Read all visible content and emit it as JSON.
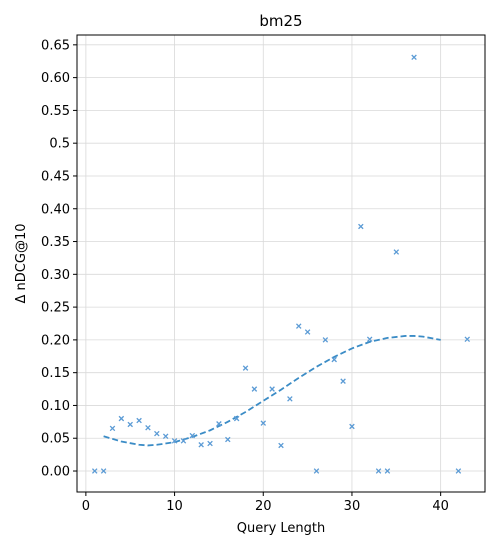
{
  "chart_data": {
    "type": "scatter",
    "title": "bm25",
    "xlabel": "Query Length",
    "ylabel": "Δ nDCG@10",
    "xlim": [
      -1,
      45
    ],
    "ylim": [
      -0.032,
      0.665
    ],
    "grid": true,
    "x_ticks": [
      0,
      10,
      20,
      30,
      40
    ],
    "x_tick_labels": [
      "0",
      "10",
      "20",
      "30",
      "40"
    ],
    "y_ticks": [
      0,
      0.05,
      0.1,
      0.15,
      0.2,
      0.25,
      0.3,
      0.35,
      0.4,
      0.45,
      0.5,
      0.55,
      0.6,
      0.65
    ],
    "y_tick_labels": [
      "0.00",
      "0.05",
      "0.10",
      "0.15",
      "0.20",
      "0.25",
      "0.30",
      "0.35",
      "0.40",
      "0.45",
      "0.5",
      "0.55",
      "0.60",
      "0.65"
    ],
    "series": [
      {
        "marker": "x",
        "color": "#5b9bd5",
        "x": [
          1,
          2,
          3,
          4,
          5,
          6,
          7,
          8,
          9,
          10,
          11,
          12,
          13,
          14,
          15,
          16,
          17,
          18,
          19,
          20,
          21,
          22,
          23,
          24,
          25,
          26,
          27,
          28,
          29,
          30,
          31,
          32,
          33,
          34,
          35,
          37,
          42,
          43
        ],
        "y": [
          0.0,
          0.0,
          0.065,
          0.08,
          0.071,
          0.077,
          0.066,
          0.057,
          0.053,
          0.046,
          0.046,
          0.054,
          0.04,
          0.042,
          0.072,
          0.048,
          0.08,
          0.157,
          0.125,
          0.073,
          0.125,
          0.039,
          0.11,
          0.221,
          0.212,
          0.0,
          0.2,
          0.17,
          0.137,
          0.068,
          0.373,
          0.201,
          0.0,
          0.0,
          0.334,
          0.631,
          0.0,
          0.201
        ]
      },
      {
        "type": "line",
        "style": "dashed",
        "color": "#3b8cc6",
        "x": [
          2,
          4,
          6,
          7,
          8,
          10,
          12,
          14,
          16,
          18,
          20,
          22,
          24,
          26,
          28,
          30,
          32,
          34,
          36,
          37,
          38,
          40
        ],
        "y": [
          0.053,
          0.045,
          0.04,
          0.039,
          0.04,
          0.044,
          0.052,
          0.062,
          0.075,
          0.09,
          0.107,
          0.124,
          0.142,
          0.159,
          0.174,
          0.187,
          0.197,
          0.203,
          0.206,
          0.206,
          0.205,
          0.2
        ]
      }
    ]
  }
}
